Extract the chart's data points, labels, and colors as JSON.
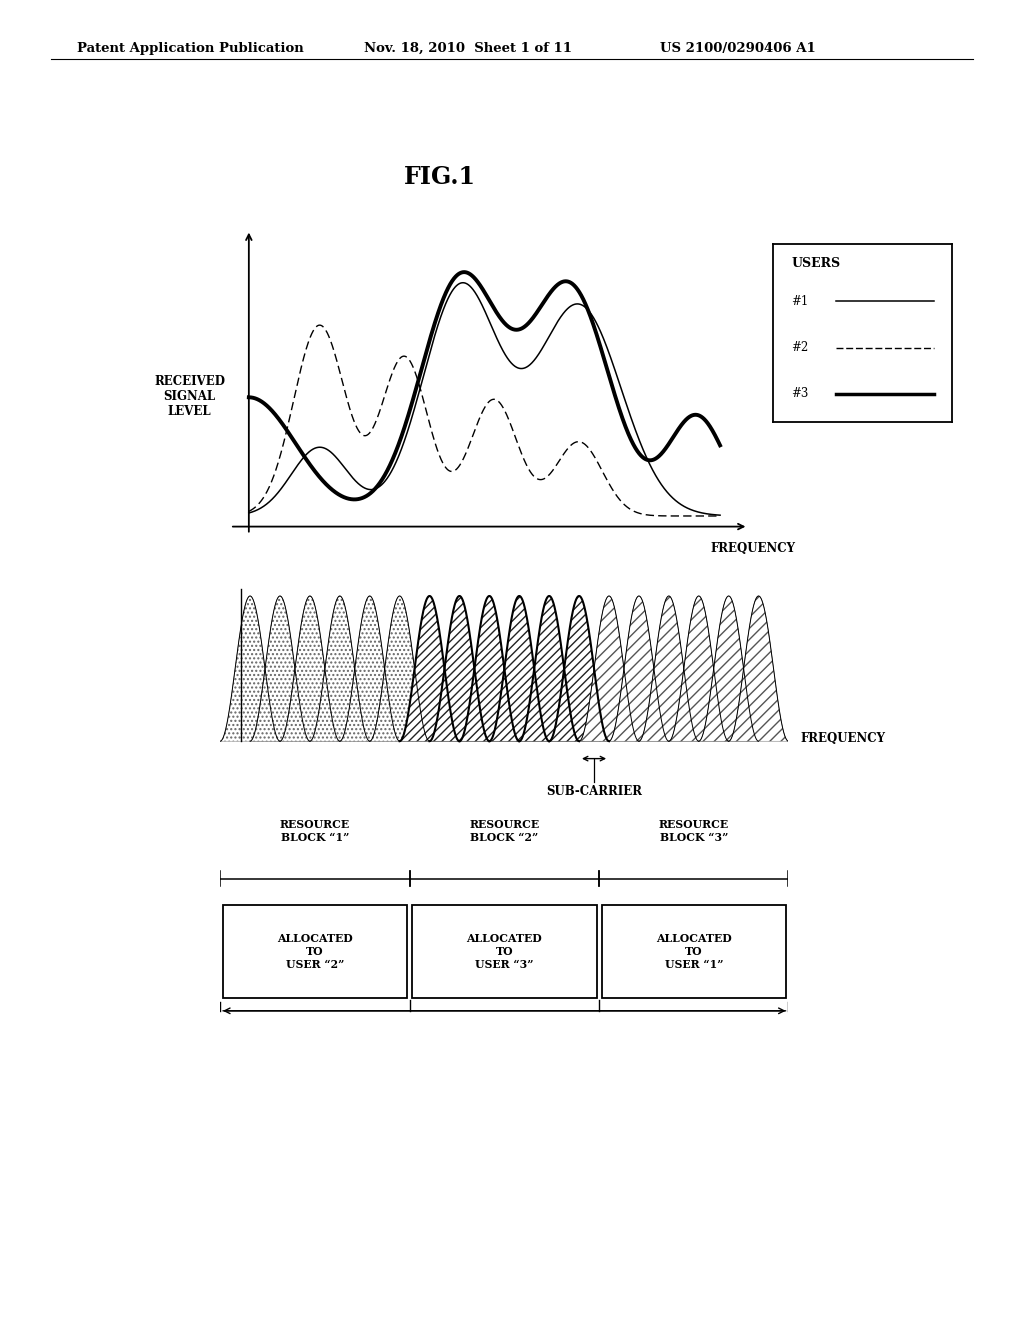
{
  "header_left": "Patent Application Publication",
  "header_mid": "Nov. 18, 2010  Sheet 1 of 11",
  "header_right": "US 2100/0290406 A1",
  "fig_title": "FIG.1",
  "bg_color": "#ffffff",
  "panel1_ylabel": "RECEIVED\nSIGNAL\nLEVEL",
  "panel1_xlabel": "FREQUENCY",
  "legend_title": "USERS",
  "legend_items": [
    "#1",
    "#2",
    "#3"
  ],
  "panel2_xlabel": "FREQUENCY",
  "subcarrier_label": "SUB-CARRIER",
  "block_labels": [
    "RESOURCE\nBLOCK ‘1’",
    "RESOURCE\nBLOCK ‘2’",
    "RESOURCE\nBLOCK ‘3’"
  ],
  "alloc_labels": [
    "ALLOCATED\nTO\nUSER ‘2’",
    "ALLOCATED\nTO\nUSER ‘3’",
    "ALLOCATED\nTO\nUSER ‘1’"
  ]
}
